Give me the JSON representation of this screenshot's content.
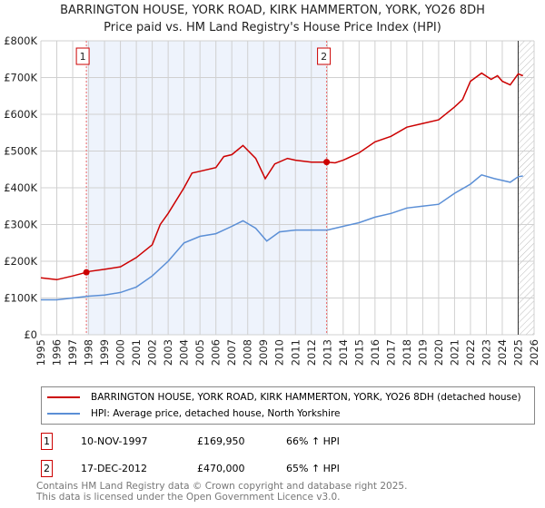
{
  "header": {
    "title": "BARRINGTON HOUSE, YORK ROAD, KIRK HAMMERTON, YORK, YO26 8DH",
    "subtitle": "Price paid vs. HM Land Registry's House Price Index (HPI)"
  },
  "chart_data": {
    "type": "line",
    "title": "BARRINGTON HOUSE, YORK ROAD, KIRK HAMMERTON, YORK, YO26 8DH",
    "xlim": [
      1995,
      2026
    ],
    "ylim": [
      0,
      800000
    ],
    "x_ticks": [
      "1995",
      "1996",
      "1997",
      "1998",
      "1999",
      "2000",
      "2001",
      "2002",
      "2003",
      "2004",
      "2005",
      "2006",
      "2007",
      "2008",
      "2009",
      "2010",
      "2011",
      "2012",
      "2013",
      "2014",
      "2015",
      "2016",
      "2017",
      "2018",
      "2019",
      "2020",
      "2021",
      "2022",
      "2023",
      "2024",
      "2025",
      "2026"
    ],
    "y_ticks": [
      {
        "v": 0,
        "label": "£0"
      },
      {
        "v": 100000,
        "label": "£100K"
      },
      {
        "v": 200000,
        "label": "£200K"
      },
      {
        "v": 300000,
        "label": "£300K"
      },
      {
        "v": 400000,
        "label": "£400K"
      },
      {
        "v": 500000,
        "label": "£500K"
      },
      {
        "v": 600000,
        "label": "£600K"
      },
      {
        "v": 700000,
        "label": "£700K"
      },
      {
        "v": 800000,
        "label": "£800K"
      }
    ],
    "shaded_range": [
      1997.86,
      2012.96
    ],
    "hatched_from": 2025.0,
    "series": [
      {
        "name": "BARRINGTON HOUSE, YORK ROAD, KIRK HAMMERTON, YORK, YO26 8DH (detached house)",
        "color": "#cc0000",
        "x": [
          1995,
          1996,
          1997,
          1997.86,
          1998,
          1999,
          2000,
          2001,
          2002,
          2002.5,
          2003,
          2004,
          2004.5,
          2005,
          2006,
          2006.5,
          2007,
          2007.7,
          2008.5,
          2009.1,
          2009.7,
          2010.5,
          2011,
          2012,
          2012.96,
          2013.5,
          2014,
          2015,
          2016,
          2017,
          2018,
          2019,
          2020,
          2021,
          2021.5,
          2022,
          2022.7,
          2023.3,
          2023.7,
          2024,
          2024.5,
          2025,
          2025.3
        ],
        "y": [
          155000,
          150000,
          160000,
          169950,
          172000,
          178000,
          185000,
          210000,
          245000,
          300000,
          330000,
          400000,
          440000,
          445000,
          455000,
          485000,
          490000,
          515000,
          480000,
          425000,
          465000,
          480000,
          475000,
          470000,
          470000,
          468000,
          475000,
          495000,
          525000,
          540000,
          565000,
          575000,
          585000,
          620000,
          640000,
          690000,
          712000,
          695000,
          705000,
          690000,
          680000,
          710000,
          705000
        ]
      },
      {
        "name": "HPI: Average price, detached house, North Yorkshire",
        "color": "#5b8fd6",
        "x": [
          1995,
          1996,
          1997,
          1998,
          1999,
          2000,
          2001,
          2002,
          2003,
          2004,
          2005,
          2006,
          2007,
          2007.7,
          2008.5,
          2009.2,
          2010,
          2011,
          2012,
          2013,
          2014,
          2015,
          2016,
          2017,
          2018,
          2019,
          2020,
          2021,
          2022,
          2022.7,
          2023.5,
          2024,
          2024.5,
          2025,
          2025.3
        ],
        "y": [
          95000,
          95000,
          100000,
          105000,
          108000,
          115000,
          130000,
          160000,
          200000,
          250000,
          268000,
          275000,
          295000,
          310000,
          290000,
          255000,
          280000,
          285000,
          285000,
          285000,
          295000,
          305000,
          320000,
          330000,
          345000,
          350000,
          355000,
          385000,
          410000,
          435000,
          425000,
          420000,
          415000,
          430000,
          432000
        ]
      }
    ],
    "markers": [
      {
        "label": "1",
        "x": 1997.86,
        "y": 169950
      },
      {
        "label": "2",
        "x": 2012.96,
        "y": 470000
      }
    ]
  },
  "legend": {
    "items": [
      "BARRINGTON HOUSE, YORK ROAD, KIRK HAMMERTON, YORK, YO26 8DH (detached house)",
      "HPI: Average price, detached house, North Yorkshire"
    ]
  },
  "sales": [
    {
      "num": "1",
      "date": "10-NOV-1997",
      "price": "£169,950",
      "hpi": "66% ↑ HPI"
    },
    {
      "num": "2",
      "date": "17-DEC-2012",
      "price": "£470,000",
      "hpi": "65% ↑ HPI"
    }
  ],
  "footer": {
    "line1": "Contains HM Land Registry data © Crown copyright and database right 2025.",
    "line2": "This data is licensed under the Open Government Licence v3.0."
  }
}
